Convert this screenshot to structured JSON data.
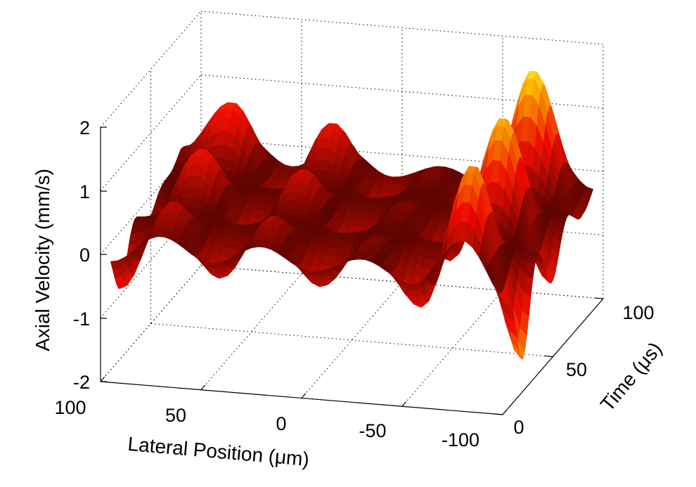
{
  "chart_data": {
    "type": "surface",
    "title": "",
    "colormap": "hot",
    "xlabel": "Lateral Position (μm)",
    "ylabel": "Time (μs)",
    "zlabel": "Axial Velocity (mm/s)",
    "x_ticks": [
      "100",
      "50",
      "0",
      "-50",
      "-100"
    ],
    "y_ticks": [
      "0",
      "50",
      "100"
    ],
    "z_ticks": [
      "2",
      "1",
      "0",
      "-1",
      "-2"
    ],
    "xlim": [
      -100,
      100
    ],
    "ylim": [
      0,
      100
    ],
    "zlim": [
      -2,
      2
    ],
    "grid": true,
    "series": [
      {
        "time": 20,
        "x": [
          -100,
          -75,
          -50,
          -25,
          0,
          25,
          50,
          75,
          100
        ],
        "z": [
          -1.5,
          1.5,
          -0.8,
          0.2,
          -0.6,
          0.4,
          -0.6,
          0.5,
          -0.9
        ]
      },
      {
        "time": 50,
        "x": [
          -100,
          -75,
          -50,
          -25,
          0,
          25,
          50,
          75,
          100
        ],
        "z": [
          -0.8,
          1.7,
          -0.6,
          0.2,
          -0.5,
          0.6,
          -0.5,
          0.8,
          -0.3
        ]
      },
      {
        "time": 80,
        "x": [
          -100,
          -75,
          -50,
          -25,
          0,
          25,
          50,
          75,
          100
        ],
        "z": [
          -0.3,
          1.9,
          -0.6,
          0.2,
          -0.5,
          0.8,
          -0.4,
          1.0,
          0.2
        ]
      }
    ]
  }
}
